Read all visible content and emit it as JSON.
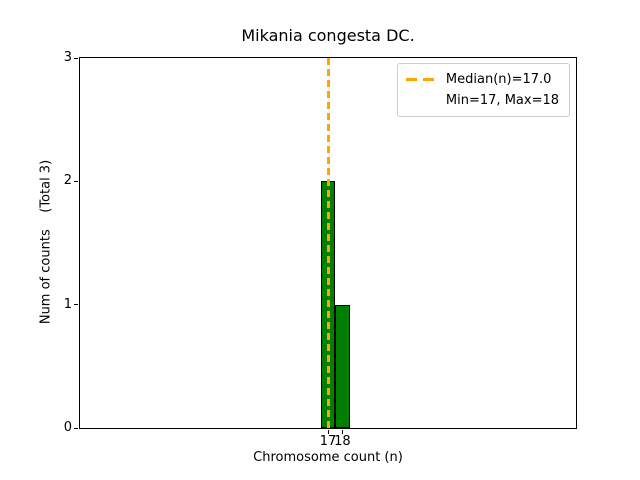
{
  "figure": {
    "background_color": "#ffffff",
    "text_color": "#000000"
  },
  "chart_data": {
    "type": "bar",
    "title": "Mikania congesta DC.",
    "xlabel": "Chromosome count (n)",
    "ylabel": "Num of counts    (Total 3)",
    "categories": [
      17,
      18
    ],
    "values": [
      2,
      1
    ],
    "bar_width_units": 1.0,
    "bar_color": "#008000",
    "bar_edge_color": "#000000",
    "median_line": {
      "value": 17.0,
      "color": "#ffa500",
      "style": "dashed"
    },
    "stats": {
      "median": 17.0,
      "min": 17,
      "max": 18,
      "total_counts": 3
    },
    "xlim": [
      -0.2,
      34.2
    ],
    "ylim": [
      0,
      3
    ],
    "xticks": [
      17,
      18
    ],
    "yticks": [
      0,
      1,
      2,
      3
    ],
    "grid": false,
    "legend_position": "upper right",
    "legend_entries": [
      "Median(n)=17.0",
      "Min=17, Max=18"
    ]
  },
  "legend": {
    "median_label": "Median(n)=17.0",
    "minmax_label": "Min=17, Max=18"
  }
}
